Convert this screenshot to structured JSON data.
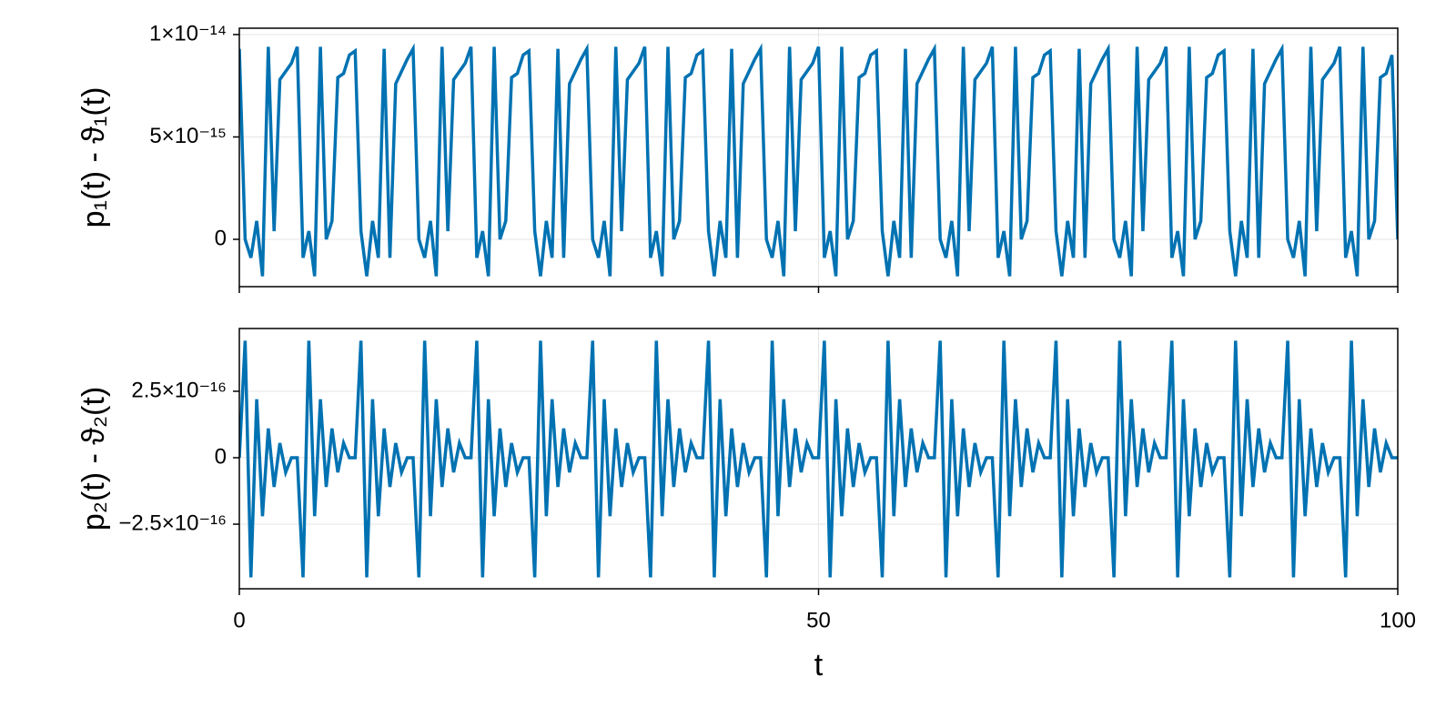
{
  "chart_data": [
    {
      "type": "line",
      "ylabel": "p₁(t) - ϑ₁(t)",
      "x": [
        0,
        0.5,
        1,
        1.5,
        2,
        2.5,
        3,
        3.5,
        4,
        4.5,
        5,
        5.5,
        6,
        6.5,
        7,
        7.5,
        8,
        8.5,
        9,
        9.5,
        10,
        10.5,
        11,
        11.5,
        12,
        12.5,
        13,
        13.5,
        14,
        14.5,
        15,
        15.5,
        16,
        16.5,
        17,
        17.5,
        18,
        18.5,
        19,
        19.5,
        20,
        20.5,
        21,
        21.5,
        22,
        22.5,
        23,
        23.5,
        24,
        24.5,
        25,
        25.5,
        26,
        26.5,
        27,
        27.5,
        28,
        28.5,
        29,
        29.5,
        30,
        30.5,
        31,
        31.5,
        32,
        32.5,
        33,
        33.5,
        34,
        34.5,
        35,
        35.5,
        36,
        36.5,
        37,
        37.5,
        38,
        38.5,
        39,
        39.5,
        40,
        40.5,
        41,
        41.5,
        42,
        42.5,
        43,
        43.5,
        44,
        44.5,
        45,
        45.5,
        46,
        46.5,
        47,
        47.5,
        48,
        48.5,
        49,
        49.5,
        50,
        50.5,
        51,
        51.5,
        52,
        52.5,
        53,
        53.5,
        54,
        54.5,
        55,
        55.5,
        56,
        56.5,
        57,
        57.5,
        58,
        58.5,
        59,
        59.5,
        60,
        60.5,
        61,
        61.5,
        62,
        62.5,
        63,
        63.5,
        64,
        64.5,
        65,
        65.5,
        66,
        66.5,
        67,
        67.5,
        68,
        68.5,
        69,
        69.5,
        70,
        70.5,
        71,
        71.5,
        72,
        72.5,
        73,
        73.5,
        74,
        74.5,
        75,
        75.5,
        76,
        76.5,
        77,
        77.5,
        78,
        78.5,
        79,
        79.5,
        80,
        80.5,
        81,
        81.5,
        82,
        82.5,
        83,
        83.5,
        84,
        84.5,
        85,
        85.5,
        86,
        86.5,
        87,
        87.5,
        88,
        88.5,
        89,
        89.5,
        90,
        90.5,
        91,
        91.5,
        92,
        92.5,
        93,
        93.5,
        94,
        94.5,
        95,
        95.5,
        96,
        96.5,
        97,
        97.5,
        98,
        98.5,
        99,
        99.5,
        100
      ],
      "series": [
        {
          "color": "#0072b2",
          "values": [
            9.3e-15,
            0,
            -9e-16,
            9e-16,
            -1.8e-15,
            9.4e-15,
            4e-16,
            7.8e-15,
            8.2e-15,
            8.6e-15,
            9.4e-15,
            -9e-16,
            4e-16,
            -1.8e-15,
            9.4e-15,
            0,
            9e-16,
            7.9e-15,
            8.1e-15,
            9e-15,
            9.2e-15,
            4e-16,
            -1.8e-15,
            9e-16,
            -9e-16,
            9.3e-15,
            -9e-16,
            7.6e-15,
            8.2e-15,
            8.8e-15,
            9.3e-15,
            0,
            -9e-16,
            9e-16,
            -1.8e-15,
            9.4e-15,
            4e-16,
            7.8e-15,
            8.2e-15,
            8.6e-15,
            9.4e-15,
            -9e-16,
            4e-16,
            -1.8e-15,
            9.4e-15,
            0,
            9e-16,
            7.9e-15,
            8.1e-15,
            9e-15,
            9.2e-15,
            4e-16,
            -1.8e-15,
            9e-16,
            -9e-16,
            9.3e-15,
            -9e-16,
            7.6e-15,
            8.2e-15,
            8.8e-15,
            9.3e-15,
            0,
            -9e-16,
            9e-16,
            -1.8e-15,
            9.4e-15,
            4e-16,
            7.8e-15,
            8.2e-15,
            8.6e-15,
            9.4e-15,
            -9e-16,
            4e-16,
            -1.8e-15,
            9.4e-15,
            0,
            9e-16,
            7.9e-15,
            8.1e-15,
            9e-15,
            9.2e-15,
            4e-16,
            -1.8e-15,
            9e-16,
            -9e-16,
            9.3e-15,
            -9e-16,
            7.6e-15,
            8.2e-15,
            8.8e-15,
            9.3e-15,
            0,
            -9e-16,
            9e-16,
            -1.8e-15,
            9.4e-15,
            4e-16,
            7.8e-15,
            8.2e-15,
            8.6e-15,
            9.4e-15,
            -9e-16,
            4e-16,
            -1.8e-15,
            9.4e-15,
            0,
            9e-16,
            7.9e-15,
            8.1e-15,
            9e-15,
            9.2e-15,
            4e-16,
            -1.8e-15,
            9e-16,
            -9e-16,
            9.3e-15,
            -9e-16,
            7.6e-15,
            8.2e-15,
            8.8e-15,
            9.3e-15,
            0,
            -9e-16,
            9e-16,
            -1.8e-15,
            9.4e-15,
            4e-16,
            7.8e-15,
            8.2e-15,
            8.6e-15,
            9.4e-15,
            -9e-16,
            4e-16,
            -1.8e-15,
            9.4e-15,
            0,
            9e-16,
            7.9e-15,
            8.1e-15,
            9e-15,
            9.2e-15,
            4e-16,
            -1.8e-15,
            9e-16,
            -9e-16,
            9.3e-15,
            -9e-16,
            7.6e-15,
            8.2e-15,
            8.8e-15,
            9.3e-15,
            0,
            -9e-16,
            9e-16,
            -1.8e-15,
            9.4e-15,
            4e-16,
            7.8e-15,
            8.2e-15,
            8.6e-15,
            9.4e-15,
            -9e-16,
            4e-16,
            -1.8e-15,
            9.4e-15,
            0,
            9e-16,
            7.9e-15,
            8.1e-15,
            9e-15,
            9.2e-15,
            4e-16,
            -1.8e-15,
            9e-16,
            -9e-16,
            9.3e-15,
            -9e-16,
            7.6e-15,
            8.2e-15,
            8.8e-15,
            9.3e-15,
            0,
            -9e-16,
            9e-16,
            -1.8e-15,
            9.4e-15,
            4e-16,
            7.8e-15,
            8.2e-15,
            8.6e-15,
            9.4e-15,
            -9e-16,
            4e-16,
            -1.8e-15,
            9.4e-15,
            0,
            9e-16,
            7.9e-15,
            8.1e-15,
            9e-15,
            0
          ]
        }
      ],
      "xlim": [
        0,
        100
      ],
      "xticks": [
        0,
        50,
        100
      ],
      "ylim": [
        -2.31e-15,
        1.031e-14
      ],
      "yticks": [
        0,
        {
          "value": 5e-15,
          "label": "5×10⁻¹⁵"
        },
        {
          "value": 1e-14,
          "label": "1×10⁻¹⁴"
        }
      ],
      "grid": true
    },
    {
      "type": "line",
      "xlabel": "t",
      "ylabel": "p₂(t) - ϑ₂(t)",
      "x": [
        0,
        0.5,
        1,
        1.5,
        2,
        2.5,
        3,
        3.5,
        4,
        4.5,
        5,
        5.5,
        6,
        6.5,
        7,
        7.5,
        8,
        8.5,
        9,
        9.5,
        10,
        10.5,
        11,
        11.5,
        12,
        12.5,
        13,
        13.5,
        14,
        14.5,
        15,
        15.5,
        16,
        16.5,
        17,
        17.5,
        18,
        18.5,
        19,
        19.5,
        20,
        20.5,
        21,
        21.5,
        22,
        22.5,
        23,
        23.5,
        24,
        24.5,
        25,
        25.5,
        26,
        26.5,
        27,
        27.5,
        28,
        28.5,
        29,
        29.5,
        30,
        30.5,
        31,
        31.5,
        32,
        32.5,
        33,
        33.5,
        34,
        34.5,
        35,
        35.5,
        36,
        36.5,
        37,
        37.5,
        38,
        38.5,
        39,
        39.5,
        40,
        40.5,
        41,
        41.5,
        42,
        42.5,
        43,
        43.5,
        44,
        44.5,
        45,
        45.5,
        46,
        46.5,
        47,
        47.5,
        48,
        48.5,
        49,
        49.5,
        50,
        50.5,
        51,
        51.5,
        52,
        52.5,
        53,
        53.5,
        54,
        54.5,
        55,
        55.5,
        56,
        56.5,
        57,
        57.5,
        58,
        58.5,
        59,
        59.5,
        60,
        60.5,
        61,
        61.5,
        62,
        62.5,
        63,
        63.5,
        64,
        64.5,
        65,
        65.5,
        66,
        66.5,
        67,
        67.5,
        68,
        68.5,
        69,
        69.5,
        70,
        70.5,
        71,
        71.5,
        72,
        72.5,
        73,
        73.5,
        74,
        74.5,
        75,
        75.5,
        76,
        76.5,
        77,
        77.5,
        78,
        78.5,
        79,
        79.5,
        80,
        80.5,
        81,
        81.5,
        82,
        82.5,
        83,
        83.5,
        84,
        84.5,
        85,
        85.5,
        86,
        86.5,
        87,
        87.5,
        88,
        88.5,
        89,
        89.5,
        90,
        90.5,
        91,
        91.5,
        92,
        92.5,
        93,
        93.5,
        94,
        94.5,
        95,
        95.5,
        96,
        96.5,
        97,
        97.5,
        98,
        98.5,
        99,
        99.5,
        100
      ],
      "series": [
        {
          "color": "#0072b2",
          "values": [
            0,
            4.4e-16,
            -4.5e-16,
            2.2e-16,
            -2.2e-16,
            1.1e-16,
            -1.1e-16,
            5.5e-17,
            -5.5e-17,
            0,
            0,
            -4.5e-16,
            4.4e-16,
            -2.2e-16,
            2.2e-16,
            -1.1e-16,
            1.1e-16,
            -5.5e-17,
            5.5e-17,
            0,
            0,
            4.4e-16,
            -4.5e-16,
            2.2e-16,
            -2.2e-16,
            1.1e-16,
            -1.1e-16,
            5.5e-17,
            -5.5e-17,
            0,
            0,
            -4.5e-16,
            4.4e-16,
            -2.2e-16,
            2.2e-16,
            -1.1e-16,
            1.1e-16,
            -5.5e-17,
            5.5e-17,
            0,
            0,
            4.4e-16,
            -4.5e-16,
            2.2e-16,
            -2.2e-16,
            1.1e-16,
            -1.1e-16,
            5.5e-17,
            -5.5e-17,
            0,
            0,
            -4.5e-16,
            4.4e-16,
            -2.2e-16,
            2.2e-16,
            -1.1e-16,
            1.1e-16,
            -5.5e-17,
            5.5e-17,
            0,
            0,
            4.4e-16,
            -4.5e-16,
            2.2e-16,
            -2.2e-16,
            1.1e-16,
            -1.1e-16,
            5.5e-17,
            -5.5e-17,
            0,
            0,
            -4.5e-16,
            4.4e-16,
            -2.2e-16,
            2.2e-16,
            -1.1e-16,
            1.1e-16,
            -5.5e-17,
            5.5e-17,
            0,
            0,
            4.4e-16,
            -4.5e-16,
            2.2e-16,
            -2.2e-16,
            1.1e-16,
            -1.1e-16,
            5.5e-17,
            -5.5e-17,
            0,
            0,
            -4.5e-16,
            4.4e-16,
            -2.2e-16,
            2.2e-16,
            -1.1e-16,
            1.1e-16,
            -5.5e-17,
            5.5e-17,
            0,
            0,
            4.4e-16,
            -4.5e-16,
            2.2e-16,
            -2.2e-16,
            1.1e-16,
            -1.1e-16,
            5.5e-17,
            -5.5e-17,
            0,
            0,
            -4.5e-16,
            4.4e-16,
            -2.2e-16,
            2.2e-16,
            -1.1e-16,
            1.1e-16,
            -5.5e-17,
            5.5e-17,
            0,
            0,
            4.4e-16,
            -4.5e-16,
            2.2e-16,
            -2.2e-16,
            1.1e-16,
            -1.1e-16,
            5.5e-17,
            -5.5e-17,
            0,
            0,
            -4.5e-16,
            4.4e-16,
            -2.2e-16,
            2.2e-16,
            -1.1e-16,
            1.1e-16,
            -5.5e-17,
            5.5e-17,
            0,
            0,
            4.4e-16,
            -4.5e-16,
            2.2e-16,
            -2.2e-16,
            1.1e-16,
            -1.1e-16,
            5.5e-17,
            -5.5e-17,
            0,
            0,
            -4.5e-16,
            4.4e-16,
            -2.2e-16,
            2.2e-16,
            -1.1e-16,
            1.1e-16,
            -5.5e-17,
            5.5e-17,
            0,
            0,
            4.4e-16,
            -4.5e-16,
            2.2e-16,
            -2.2e-16,
            1.1e-16,
            -1.1e-16,
            5.5e-17,
            -5.5e-17,
            0,
            0,
            -4.5e-16,
            4.4e-16,
            -2.2e-16,
            2.2e-16,
            -1.1e-16,
            1.1e-16,
            -5.5e-17,
            5.5e-17,
            0,
            0,
            4.4e-16,
            -4.5e-16,
            2.2e-16,
            -2.2e-16,
            1.1e-16,
            -1.1e-16,
            5.5e-17,
            -5.5e-17,
            0,
            0,
            -4.5e-16,
            4.4e-16,
            -2.2e-16,
            2.2e-16,
            -1.1e-16,
            1.1e-16,
            -5.5e-17,
            5.5e-17,
            0,
            0
          ]
        }
      ],
      "xlim": [
        0,
        100
      ],
      "xticks": [
        0,
        50,
        100
      ],
      "ylim": [
        -4.93e-16,
        4.86e-16
      ],
      "yticks": [
        {
          "value": -2.5e-16,
          "label": "−2.5×10⁻¹⁶"
        },
        0,
        {
          "value": 2.5e-16,
          "label": "2.5×10⁻¹⁶"
        }
      ],
      "grid": true
    }
  ]
}
